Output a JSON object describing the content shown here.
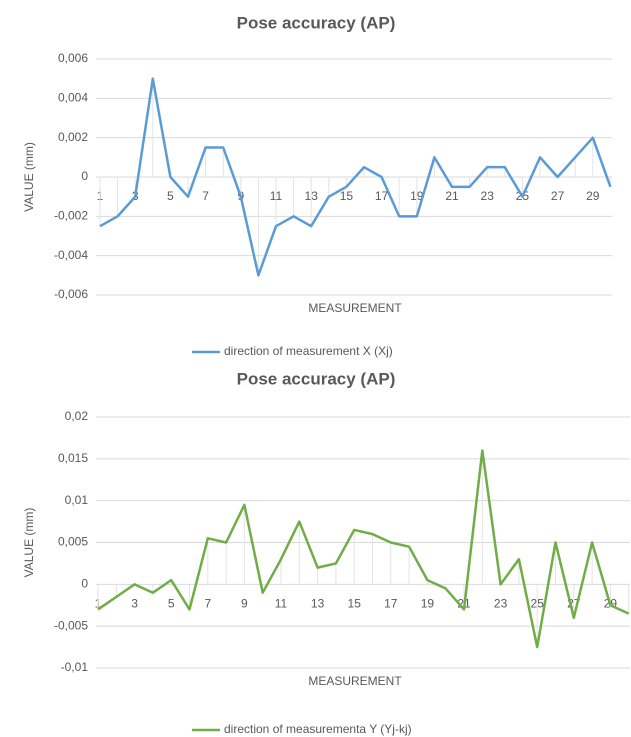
{
  "chart_data": [
    {
      "type": "line",
      "title": "Pose accuracy (AP)",
      "y_label": "VALUE (mm)",
      "x_label": "MEASUREMENT",
      "categories": [
        "1",
        null,
        "3",
        null,
        "5",
        null,
        "7",
        null,
        "9",
        null,
        "11",
        null,
        "13",
        null,
        "15",
        null,
        "17",
        null,
        "19",
        null,
        "21",
        null,
        "23",
        null,
        "25",
        null,
        "27",
        null,
        "29",
        null
      ],
      "series": [
        {
          "name": "direction of measurement X (Xj)",
          "color": "#5b9bd5",
          "values": [
            -0.0025,
            -0.002,
            -0.001,
            0.005,
            0,
            -0.001,
            0.0015,
            0.0015,
            -0.001,
            -0.005,
            -0.0025,
            -0.002,
            -0.0025,
            -0.001,
            -0.0005,
            0.0005,
            0,
            -0.002,
            -0.002,
            0.001,
            -0.0005,
            -0.0005,
            0.0005,
            0.0005,
            -0.001,
            0.001,
            0,
            0.001,
            0.002,
            -0.0005
          ]
        }
      ],
      "ylim": [
        -0.006,
        0.006
      ],
      "yticks": [
        {
          "value": 0.006,
          "label": "0,006"
        },
        {
          "value": 0.004,
          "label": "0,004"
        },
        {
          "value": 0.002,
          "label": "0,002"
        },
        0,
        {
          "value": -0.002,
          "label": "-0,002"
        },
        {
          "value": -0.004,
          "label": "-0,004"
        },
        {
          "value": -0.006,
          "label": "-0,006"
        }
      ],
      "grid": true,
      "legend": "bottom"
    },
    {
      "type": "line",
      "title": "Pose accuracy (AP)",
      "y_label": "VALUE (mm)",
      "x_label": "MEASUREMENT",
      "categories": [
        "1",
        null,
        "3",
        null,
        "5",
        null,
        "7",
        null,
        "9",
        null,
        "11",
        null,
        "13",
        null,
        "15",
        null,
        "17",
        null,
        "19",
        null,
        "21",
        null,
        "23",
        null,
        "25",
        null,
        "27",
        null,
        "29",
        null
      ],
      "series": [
        {
          "name": "direction of measurementa Y (Yj-kj)",
          "color": "#70ad47",
          "values": [
            -0.003,
            -0.0015,
            0,
            -0.001,
            0.0005,
            -0.003,
            0.0055,
            0.005,
            0.0095,
            -0.001,
            0.003,
            0.0075,
            0.002,
            0.0025,
            0.0065,
            0.006,
            0.005,
            0.0045,
            0.0005,
            -0.0005,
            -0.003,
            0.016,
            0,
            0.003,
            -0.0075,
            0.005,
            -0.004,
            0.005,
            -0.0025,
            -0.0035
          ]
        }
      ],
      "ylim": [
        -0.01,
        0.02
      ],
      "yticks": [
        {
          "value": 0.02,
          "label": "0,02"
        },
        {
          "value": 0.015,
          "label": "0,015"
        },
        {
          "value": 0.01,
          "label": "0,01"
        },
        {
          "value": 0.005,
          "label": "0,005"
        },
        0,
        {
          "value": -0.005,
          "label": "-0,005"
        },
        {
          "value": -0.01,
          "label": "-0,01"
        }
      ],
      "grid": true,
      "legend": "bottom"
    }
  ]
}
